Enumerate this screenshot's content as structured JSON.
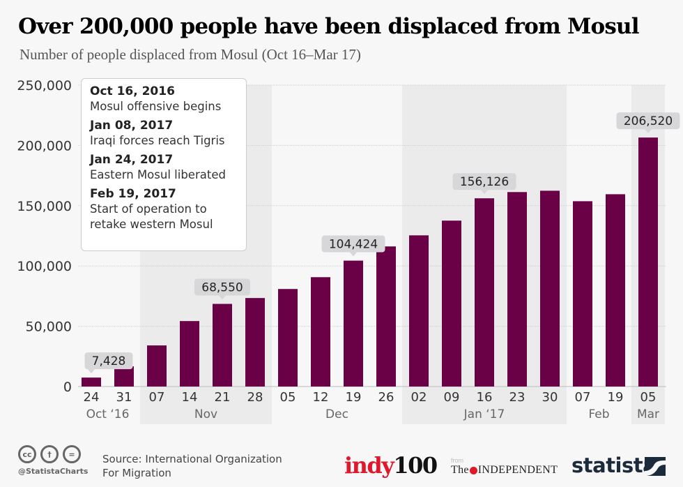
{
  "header": {
    "title": "Over 200,000 people have been displaced from Mosul",
    "subtitle": "Number of people displaced from Mosul (Oct 16–Mar 17)"
  },
  "annotation_box": {
    "events": [
      {
        "date": "Oct 16, 2016",
        "text": "Mosul offensive begins"
      },
      {
        "date": "Jan 08, 2017",
        "text": "Iraqi forces reach Tigris"
      },
      {
        "date": "Jan 24, 2017",
        "text": "Eastern Mosul liberated"
      },
      {
        "date": "Feb 19, 2017",
        "text": "Start of operation to retake western Mosul"
      }
    ]
  },
  "chart_data": {
    "type": "bar",
    "title": "Over 200,000 people have been displaced from Mosul",
    "subtitle": "Number of people displaced from Mosul (Oct 16–Mar 17)",
    "xlabel": "",
    "ylabel": "",
    "ylim": [
      0,
      250000
    ],
    "yticks": [
      0,
      50000,
      100000,
      150000,
      200000,
      250000
    ],
    "ytick_labels": [
      "0",
      "50,000",
      "100,000",
      "150,000",
      "200,000",
      "250,000"
    ],
    "grid": true,
    "categories": [
      "24",
      "31",
      "07",
      "14",
      "21",
      "28",
      "05",
      "12",
      "19",
      "26",
      "02",
      "09",
      "16",
      "23",
      "30",
      "07",
      "19",
      "05"
    ],
    "month_groups": [
      {
        "label": "Oct ‘16",
        "start": 0,
        "end": 1,
        "shaded": false
      },
      {
        "label": "Nov",
        "start": 2,
        "end": 5,
        "shaded": true
      },
      {
        "label": "Dec",
        "start": 6,
        "end": 9,
        "shaded": false
      },
      {
        "label": "Jan ‘17",
        "start": 10,
        "end": 14,
        "shaded": true
      },
      {
        "label": "Feb",
        "start": 15,
        "end": 16,
        "shaded": false
      },
      {
        "label": "Mar",
        "start": 17,
        "end": 17,
        "shaded": true
      }
    ],
    "values": [
      7428,
      16800,
      34100,
      54300,
      68550,
      73400,
      80900,
      90700,
      104424,
      116200,
      125400,
      137600,
      156126,
      161300,
      162400,
      153700,
      159500,
      206520
    ],
    "data_labels": [
      {
        "index": 0,
        "text": "7,428"
      },
      {
        "index": 4,
        "text": "68,550"
      },
      {
        "index": 8,
        "text": "104,424"
      },
      {
        "index": 12,
        "text": "156,126"
      },
      {
        "index": 17,
        "text": "206,520"
      }
    ],
    "bar_color": "#6a0045",
    "shade_color": "#ebebeb",
    "label_bubble_color": "#d7d7d9"
  },
  "footer": {
    "license_icons": [
      "cc-icon",
      "attribution-icon",
      "no-derivatives-icon"
    ],
    "cc_glyphs": [
      "cc",
      "†",
      "="
    ],
    "handle": "@StatistaCharts",
    "source_line1": "Source: International Organization",
    "source_line2": "For Migration",
    "indy_red": "indy",
    "indy_black": "100",
    "from_label": "from",
    "independent_pre": "The",
    "independent_post": "INDEPENDENT",
    "statista": "statista"
  }
}
